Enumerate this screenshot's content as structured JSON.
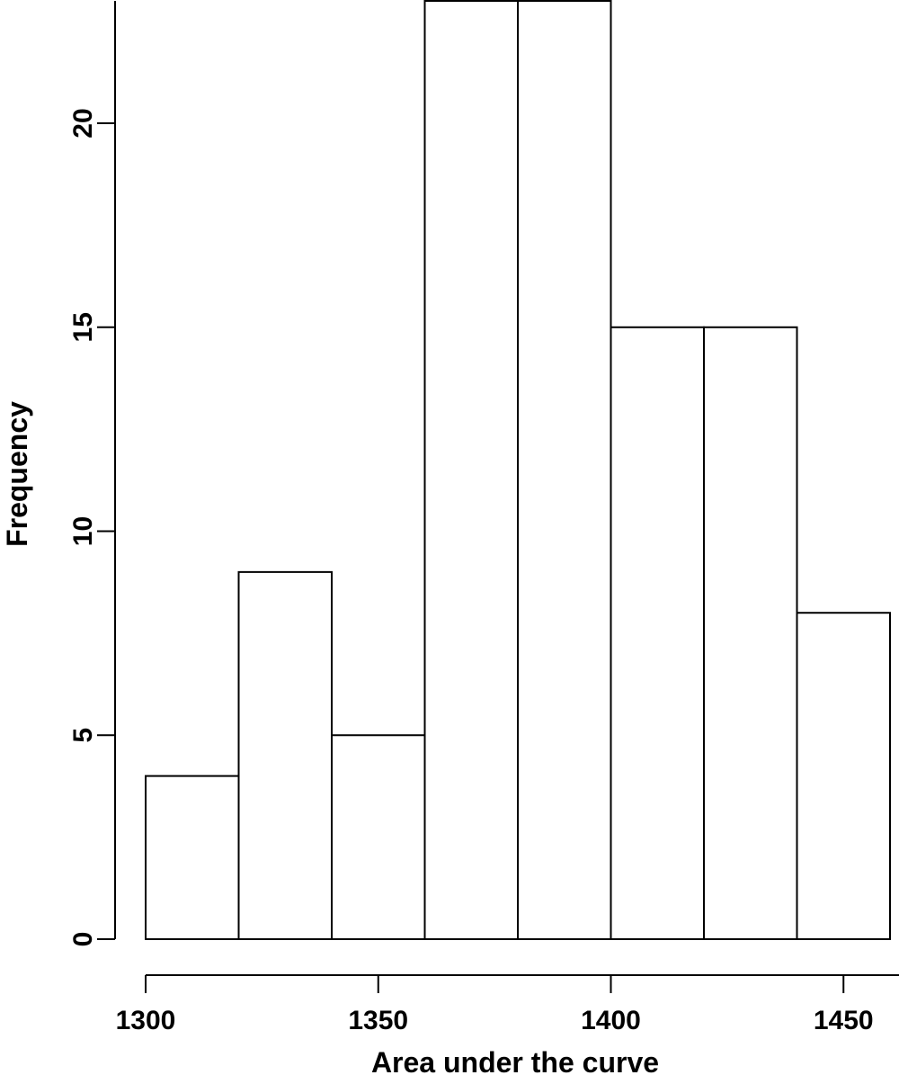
{
  "chart_data": {
    "type": "bar",
    "bin_edges": [
      1300,
      1320,
      1340,
      1360,
      1380,
      1400,
      1420,
      1440,
      1460
    ],
    "values": [
      4,
      9,
      5,
      23,
      23,
      15,
      15,
      8
    ],
    "xlabel": "Area under the curve",
    "ylabel": "Frequency",
    "xlim": [
      1300,
      1460
    ],
    "ylim": [
      0,
      23
    ],
    "x_ticks": [
      1300,
      1350,
      1400,
      1450
    ],
    "y_ticks": [
      0,
      5,
      10,
      15,
      20
    ],
    "grid": false,
    "legend": "none"
  }
}
